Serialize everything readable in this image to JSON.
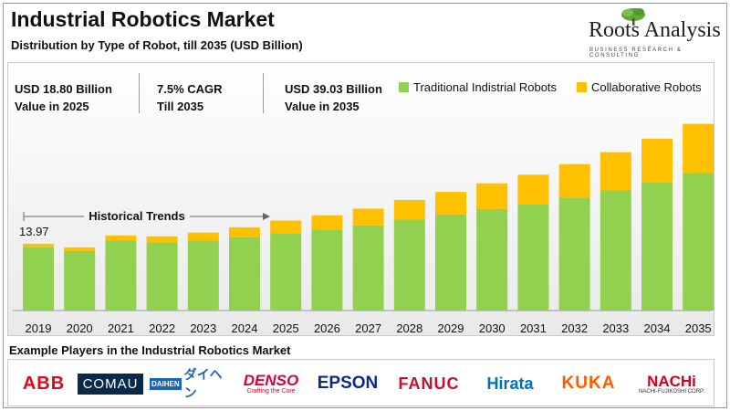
{
  "header": {
    "title": "Industrial Robotics Market",
    "subtitle": "Distribution by Type of Robot, till 2035 (USD Billion)"
  },
  "logo": {
    "name": "Roots Analysis",
    "tagline": "BUSINESS RESEARCH & CONSULTING",
    "icon": "tree-icon"
  },
  "stats": [
    {
      "line1": "USD 18.80 Billion",
      "line2": "Value in 2025"
    },
    {
      "line1": "7.5% CAGR",
      "line2": "Till 2035"
    },
    {
      "line1": "USD 39.03 Billion",
      "line2": "Value in 2035"
    }
  ],
  "colors": {
    "traditional": "#92d050",
    "collaborative": "#ffc000"
  },
  "chart_data": {
    "type": "bar",
    "stacked": true,
    "categories": [
      "2019",
      "2020",
      "2021",
      "2022",
      "2023",
      "2024",
      "2025",
      "2026",
      "2027",
      "2028",
      "2029",
      "2030",
      "2031",
      "2032",
      "2033",
      "2034",
      "2035"
    ],
    "series": [
      {
        "name": "Traditional Indistrial Robots",
        "values": [
          13.3,
          12.4,
          14.6,
          14.2,
          14.6,
          15.3,
          16.2,
          16.9,
          17.8,
          19.0,
          20.1,
          21.2,
          22.3,
          23.6,
          25.1,
          26.8,
          28.8
        ]
      },
      {
        "name": "Collaborative Robots",
        "values": [
          0.67,
          0.8,
          1.1,
          1.3,
          1.7,
          2.1,
          2.6,
          3.0,
          3.5,
          4.1,
          4.7,
          5.4,
          6.1,
          7.0,
          8.0,
          9.1,
          10.23
        ]
      }
    ],
    "data_labels": [
      {
        "category": "2019",
        "text": "13.97"
      }
    ],
    "annotation": "Historical Trends",
    "legend_position": "top-right",
    "ylim": [
      0,
      42
    ],
    "grid": false
  },
  "players": {
    "title": "Example Players in the Industrial Robotics Market",
    "logos": [
      {
        "name": "ABB"
      },
      {
        "name": "COMAU"
      },
      {
        "name": "DAIHEN",
        "sub": "ダイヘン"
      },
      {
        "name": "DENSO",
        "sub": "Crafting the Core"
      },
      {
        "name": "EPSON"
      },
      {
        "name": "FANUC"
      },
      {
        "name": "Hirata"
      },
      {
        "name": "KUKA"
      },
      {
        "name": "NACHi",
        "sub": "NACHI-FUJIKOSHI CORP."
      }
    ]
  }
}
